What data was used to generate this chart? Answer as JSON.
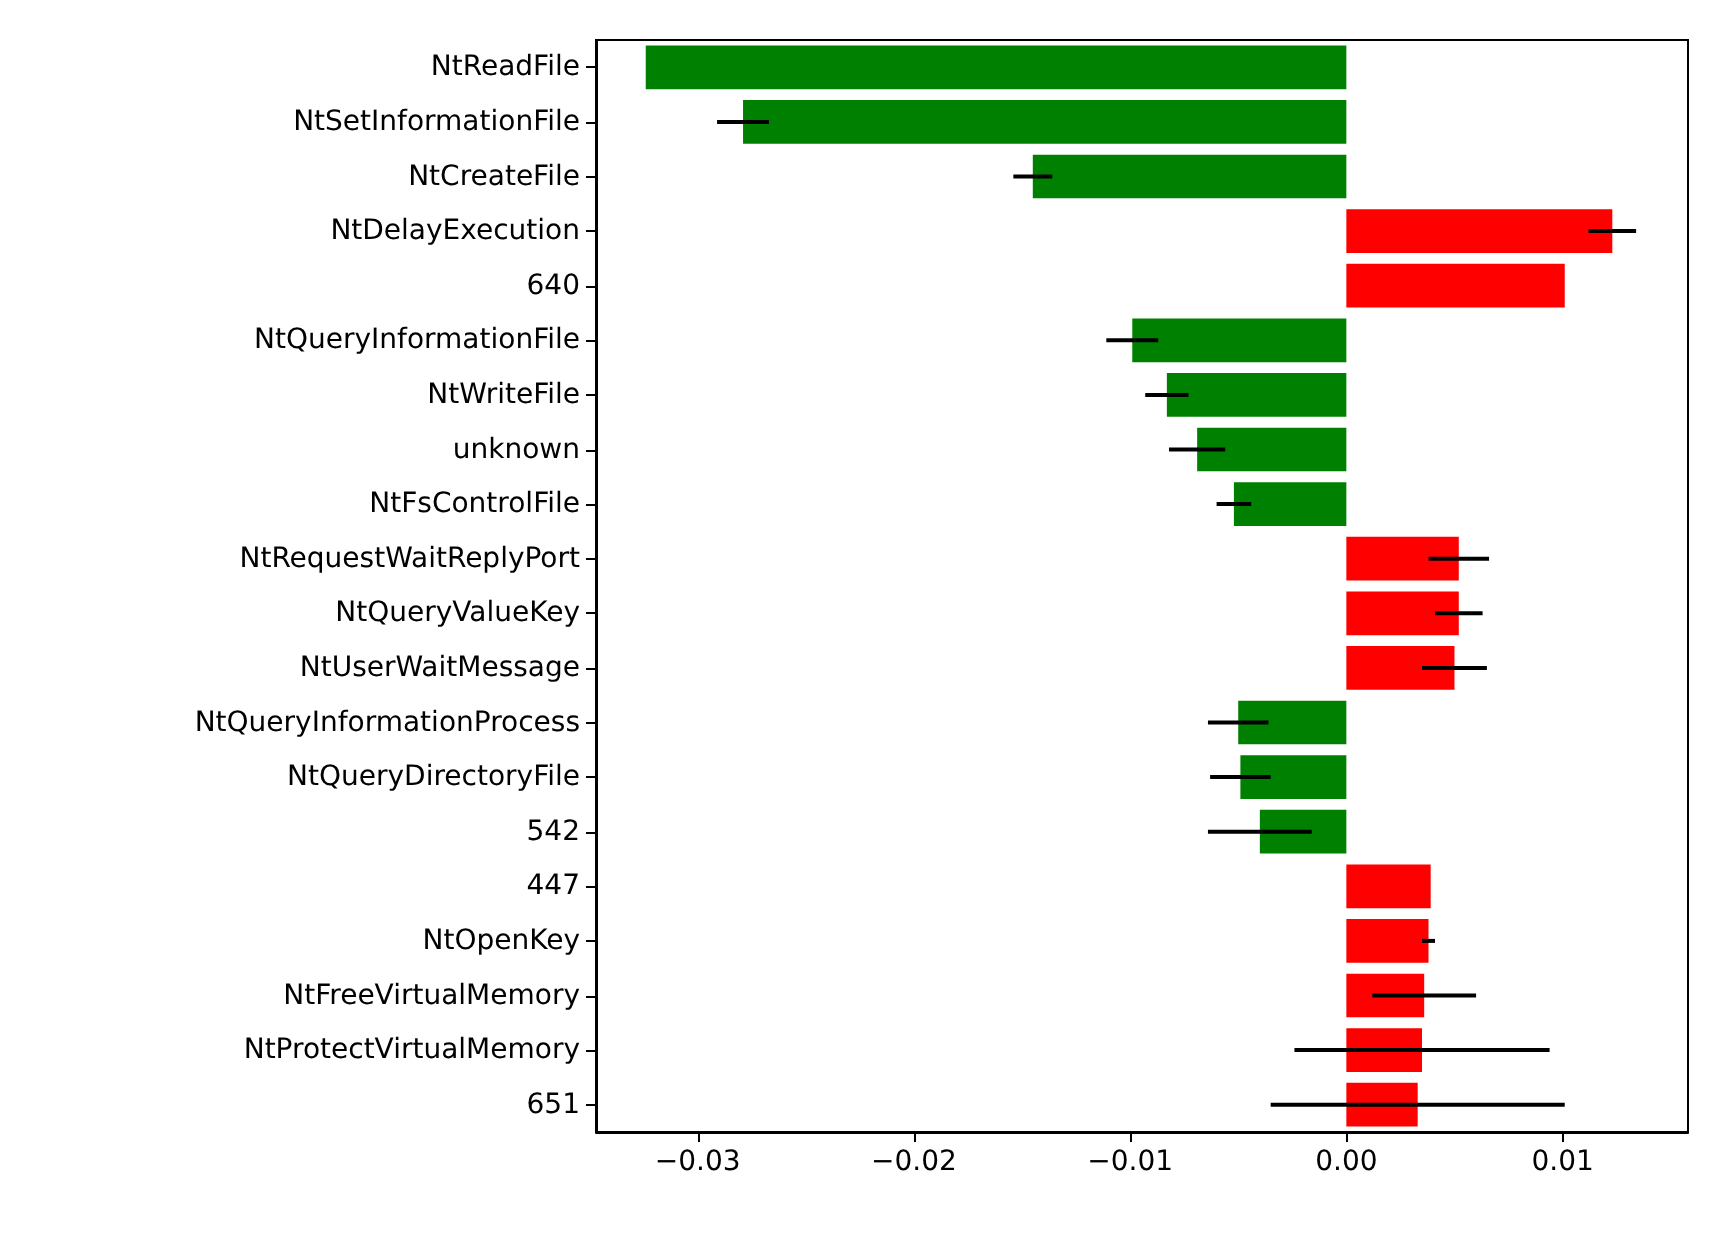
{
  "chart_data": {
    "type": "bar",
    "orientation": "horizontal",
    "categories": [
      "NtReadFile",
      "NtSetInformationFile",
      "NtCreateFile",
      "NtDelayExecution",
      "640",
      "NtQueryInformationFile",
      "NtWriteFile",
      "unknown",
      "NtFsControlFile",
      "NtRequestWaitReplyPort",
      "NtQueryValueKey",
      "NtUserWaitMessage",
      "NtQueryInformationProcess",
      "NtQueryDirectoryFile",
      "542",
      "447",
      "NtOpenKey",
      "NtFreeVirtualMemory",
      "NtProtectVirtualMemory",
      "651"
    ],
    "values": [
      -0.0324,
      -0.0279,
      -0.0145,
      0.0123,
      0.0101,
      -0.0099,
      -0.0083,
      -0.0069,
      -0.0052,
      0.0052,
      0.0052,
      0.005,
      -0.005,
      -0.0049,
      -0.004,
      0.0039,
      0.0038,
      0.0036,
      0.0035,
      0.0033
    ],
    "errors": [
      null,
      0.0012,
      0.0009,
      0.0011,
      null,
      0.0012,
      0.001,
      0.0013,
      0.0008,
      0.0014,
      0.0011,
      0.0015,
      0.0014,
      0.0014,
      0.0024,
      null,
      0.0003,
      0.0024,
      0.0059,
      0.0068
    ],
    "colors": [
      "#008000",
      "#008000",
      "#008000",
      "#ff0000",
      "#ff0000",
      "#008000",
      "#008000",
      "#008000",
      "#008000",
      "#ff0000",
      "#ff0000",
      "#ff0000",
      "#008000",
      "#008000",
      "#008000",
      "#ff0000",
      "#ff0000",
      "#ff0000",
      "#ff0000",
      "#ff0000"
    ],
    "xlim": [
      -0.0347,
      0.0158
    ],
    "xticks": [
      {
        "value": -0.03,
        "label": "−0.03"
      },
      {
        "value": -0.02,
        "label": "−0.02"
      },
      {
        "value": -0.01,
        "label": "−0.01"
      },
      {
        "value": 0,
        "label": "0.00"
      },
      {
        "value": 0.01,
        "label": "0.01"
      }
    ],
    "grid": false
  }
}
